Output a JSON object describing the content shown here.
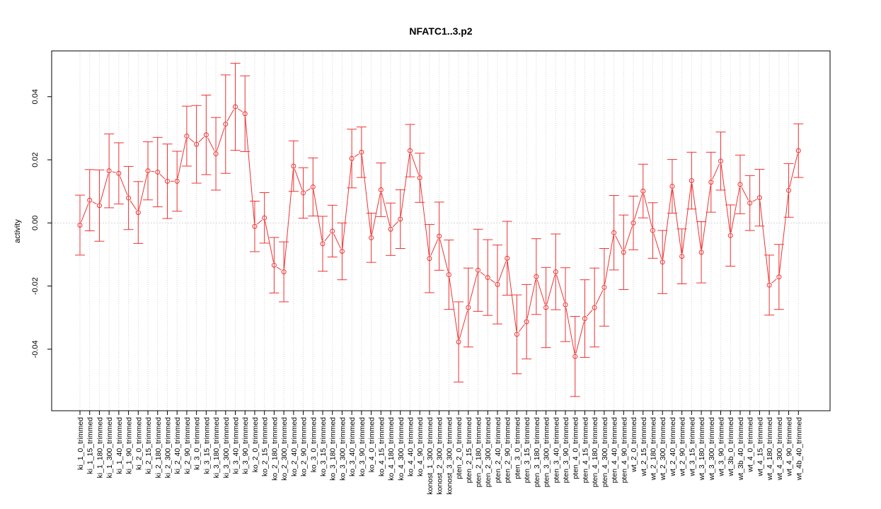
{
  "chart_data": {
    "type": "line",
    "title": "NFATC1..3.p2",
    "xlabel": "",
    "ylabel": "activity",
    "ylim": [
      -0.0595,
      0.0545
    ],
    "yticks": [
      -0.04,
      -0.02,
      0.0,
      0.02,
      0.04
    ],
    "ytick_labels": [
      "-0.04",
      "-0.02",
      "0.00",
      "0.02",
      "0.04"
    ],
    "grid": true,
    "error_bars": true,
    "series_color": "#ee3333",
    "categories": [
      "ki_1_0_trimmed",
      "ki_1_15_trimmed",
      "ki_1_180_trimmed",
      "ki_1_300_trimmed",
      "ki_1_40_trimmed",
      "ki_1_90_trimmed",
      "ki_2_0_trimmed",
      "ki_2_15_trimmed",
      "ki_2_180_trimmed",
      "ki_2_300_trimmed",
      "ki_2_40_trimmed",
      "ki_2_90_trimmed",
      "ki_3_0_trimmed",
      "ki_3_15_trimmed",
      "ki_3_180_trimmed",
      "ki_3_300_trimmed",
      "ki_3_40_trimmed",
      "ki_3_90_trimmed",
      "ko_2_0_trimmed",
      "ko_2_15_trimmed",
      "ko_2_180_trimmed",
      "ko_2_300_trimmed",
      "ko_2_40_trimmed",
      "ko_2_90_trimmed",
      "ko_3_0_trimmed",
      "ko_3_15_trimmed",
      "ko_3_180_trimmed",
      "ko_3_300_trimmed",
      "ko_3_40_trimmed",
      "ko_3_90_trimmed",
      "ko_4_0_trimmed",
      "ko_4_15_trimmed",
      "ko_4_180_trimmed",
      "ko_4_300_trimmed",
      "ko_4_40_trimmed",
      "ko_4_90_trimmed",
      "konost_1_300_trimmed",
      "konost_2_300_trimmed",
      "konost_3_300_trimmed",
      "pten_2_0_trimmed",
      "pten_2_15_trimmed",
      "pten_2_180_trimmed",
      "pten_2_300_trimmed",
      "pten_2_40_trimmed",
      "pten_2_90_trimmed",
      "pten_3_0_trimmed",
      "pten_3_15_trimmed",
      "pten_3_180_trimmed",
      "pten_3_300_trimmed",
      "pten_3_40_trimmed",
      "pten_3_90_trimmed",
      "pten_4_0_trimmed",
      "pten_4_15_trimmed",
      "pten_4_180_trimmed",
      "pten_4_300_trimmed",
      "pten_4_40_trimmed",
      "pten_4_90_trimmed",
      "wt_2_0_trimmed",
      "wt_2_15_trimmed",
      "wt_2_180_trimmed",
      "wt_2_300_trimmed",
      "wt_2_40_trimmed",
      "wt_2_90_trimmed",
      "wt_3_15_trimmed",
      "wt_3_180_trimmed",
      "wt_3_300_trimmed",
      "wt_3_90_trimmed",
      "wt_3b_0_trimmed",
      "wt_3b_40_trimmed",
      "wt_4_0_trimmed",
      "wt_4_15_trimmed",
      "wt_4_180_trimmed",
      "wt_4_300_trimmed",
      "wt_4_90_trimmed",
      "wt_4b_40_trimmed"
    ],
    "values": [
      -0.0007,
      0.0072,
      0.0055,
      0.0165,
      0.0157,
      0.0079,
      0.0033,
      0.0165,
      0.0161,
      0.0132,
      0.0132,
      0.0275,
      0.0249,
      0.0279,
      0.0219,
      0.0313,
      0.0368,
      0.0346,
      -0.0011,
      0.0016,
      -0.0134,
      -0.0155,
      0.018,
      0.0095,
      0.0114,
      -0.0066,
      -0.0026,
      -0.009,
      0.0204,
      0.0224,
      -0.0047,
      0.0105,
      -0.002,
      0.0012,
      0.0229,
      0.0143,
      -0.0113,
      -0.0042,
      -0.0164,
      -0.0377,
      -0.0268,
      -0.015,
      -0.0173,
      -0.0195,
      -0.0112,
      -0.0353,
      -0.0313,
      -0.017,
      -0.0268,
      -0.0155,
      -0.0259,
      -0.0423,
      -0.0303,
      -0.0268,
      -0.0204,
      -0.0031,
      -0.0093,
      0.0,
      0.0101,
      -0.0024,
      -0.0124,
      0.0116,
      -0.0106,
      0.0134,
      -0.0093,
      0.0129,
      0.0196,
      -0.004,
      0.0122,
      0.0063,
      0.008,
      -0.0197,
      -0.0171,
      0.0103,
      0.0229
    ],
    "errors": [
      0.0095,
      0.0097,
      0.0113,
      0.0117,
      0.0097,
      0.01,
      0.0098,
      0.0092,
      0.011,
      0.0118,
      0.0095,
      0.0095,
      0.0123,
      0.0126,
      0.0115,
      0.0156,
      0.0138,
      0.012,
      0.008,
      0.008,
      0.0088,
      0.0095,
      0.008,
      0.008,
      0.0092,
      0.0087,
      0.0082,
      0.009,
      0.0093,
      0.008,
      0.0078,
      0.0085,
      0.0083,
      0.0093,
      0.0083,
      0.0078,
      0.0108,
      0.0108,
      0.011,
      0.0127,
      0.0125,
      0.013,
      0.012,
      0.0125,
      0.0117,
      0.0125,
      0.0118,
      0.012,
      0.0127,
      0.012,
      0.0117,
      0.0127,
      0.0123,
      0.0125,
      0.0123,
      0.0118,
      0.0118,
      0.0085,
      0.0085,
      0.0088,
      0.01,
      0.0085,
      0.0087,
      0.009,
      0.0097,
      0.0095,
      0.0092,
      0.0097,
      0.0093,
      0.0087,
      0.009,
      0.0095,
      0.0103,
      0.0085,
      0.0085
    ]
  }
}
